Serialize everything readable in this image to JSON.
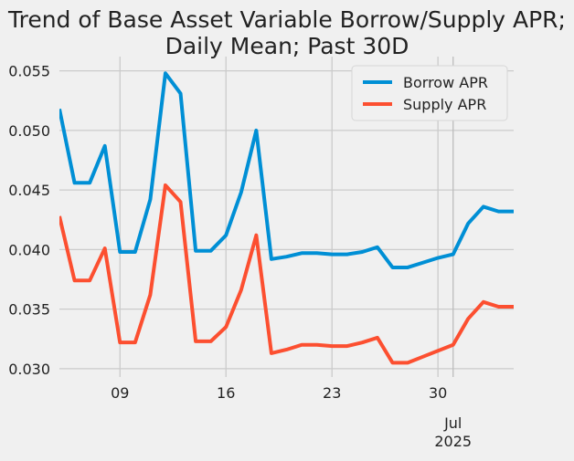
{
  "chart_data": {
    "type": "line",
    "title_lines": [
      "Trend of Base Asset Variable Borrow/Supply APR;",
      "Daily Mean; Past 30D"
    ],
    "xlabel": "",
    "ylabel": "",
    "x_range": [
      "2025-06-05",
      "2025-07-05"
    ],
    "ylim": [
      0.0293,
      0.0562
    ],
    "y_ticks": [
      0.03,
      0.035,
      0.04,
      0.045,
      0.05,
      0.055
    ],
    "y_tick_labels": [
      "0.030",
      "0.035",
      "0.040",
      "0.045",
      "0.050",
      "0.055"
    ],
    "x_ticks": [
      {
        "date": "2025-06-09",
        "label": "09"
      },
      {
        "date": "2025-06-16",
        "label": "16"
      },
      {
        "date": "2025-06-23",
        "label": "23"
      },
      {
        "date": "2025-06-30",
        "label": "30"
      }
    ],
    "x_major_tick": {
      "date": "2025-07-01",
      "label_month": "Jul",
      "label_year": "2025"
    },
    "grid": true,
    "legend_position": "top-right",
    "x": [
      "2025-06-05",
      "2025-06-06",
      "2025-06-07",
      "2025-06-08",
      "2025-06-09",
      "2025-06-10",
      "2025-06-11",
      "2025-06-12",
      "2025-06-13",
      "2025-06-14",
      "2025-06-15",
      "2025-06-16",
      "2025-06-17",
      "2025-06-18",
      "2025-06-19",
      "2025-06-20",
      "2025-06-21",
      "2025-06-22",
      "2025-06-23",
      "2025-06-24",
      "2025-06-25",
      "2025-06-26",
      "2025-06-27",
      "2025-06-28",
      "2025-06-29",
      "2025-06-30",
      "2025-07-01",
      "2025-07-02",
      "2025-07-03",
      "2025-07-04",
      "2025-07-05"
    ],
    "series": [
      {
        "name": "Borrow APR",
        "color": "#008fd5",
        "values": [
          0.0518,
          0.0456,
          0.0456,
          0.0487,
          0.0398,
          0.0398,
          0.0442,
          0.0548,
          0.0531,
          0.0399,
          0.0399,
          0.0412,
          0.0448,
          0.05,
          0.0392,
          0.0394,
          0.0397,
          0.0397,
          0.0396,
          0.0396,
          0.0398,
          0.0402,
          0.0385,
          0.0385,
          0.0389,
          0.0393,
          0.0396,
          0.0422,
          0.0436,
          0.0432,
          0.0432
        ]
      },
      {
        "name": "Supply APR",
        "color": "#fc4f30",
        "values": [
          0.0428,
          0.0374,
          0.0374,
          0.0401,
          0.0322,
          0.0322,
          0.0362,
          0.0454,
          0.044,
          0.0323,
          0.0323,
          0.0335,
          0.0366,
          0.0412,
          0.0313,
          0.0316,
          0.032,
          0.032,
          0.0319,
          0.0319,
          0.0322,
          0.0326,
          0.0305,
          0.0305,
          0.031,
          0.0315,
          0.032,
          0.0342,
          0.0356,
          0.0352,
          0.0352
        ]
      }
    ]
  }
}
